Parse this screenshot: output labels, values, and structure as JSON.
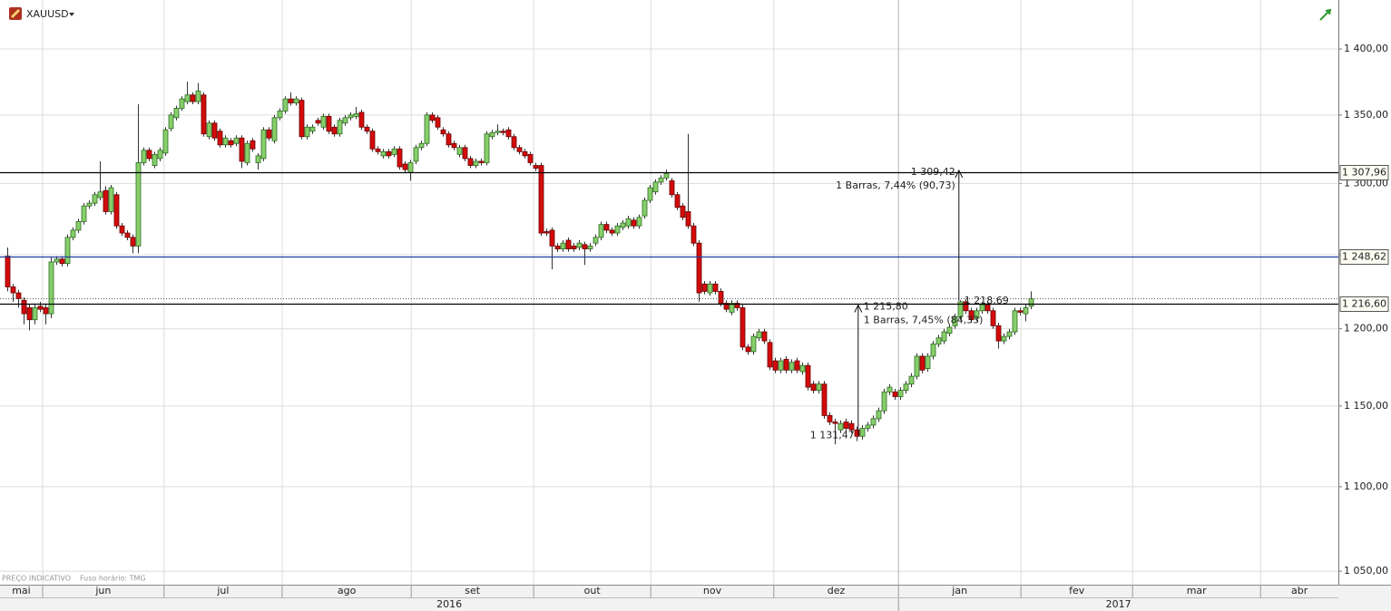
{
  "chart_data": {
    "type": "candlestick",
    "symbol": "XAUUSD",
    "footer": [
      "PREÇO INDICATIVO",
      "Fuso horário: TMG"
    ],
    "log_scale": true,
    "grid": true,
    "up_color": "#86cf6a",
    "down_color": "#d40b0b",
    "ylim": [
      1042.2,
      1438.3
    ],
    "yticks": [
      {
        "value": 1050,
        "label": "1 050,00"
      },
      {
        "value": 1100,
        "label": "1 100,00"
      },
      {
        "value": 1150,
        "label": "1 150,00"
      },
      {
        "value": 1200,
        "label": "1 200,00"
      },
      {
        "value": 1250,
        "label": "1 250,00"
      },
      {
        "value": 1300,
        "label": "1 300,00"
      },
      {
        "value": 1350,
        "label": "1 350,00"
      },
      {
        "value": 1400,
        "label": "1 400,00"
      }
    ],
    "xlim": [
      -1.33,
      244.5
    ],
    "xticks": [
      {
        "value": -21.5,
        "label": "mai"
      },
      {
        "value": 6.5,
        "label": "jun"
      },
      {
        "value": 28.8,
        "label": "jul"
      },
      {
        "value": 50.5,
        "label": "ago"
      },
      {
        "value": 74.2,
        "label": "set"
      },
      {
        "value": 96.7,
        "label": "out"
      },
      {
        "value": 118.2,
        "label": "nov"
      },
      {
        "value": 140.8,
        "label": "dez"
      },
      {
        "value": 163.7,
        "label": "jan"
      },
      {
        "value": 186.2,
        "label": "fev"
      },
      {
        "value": 206.7,
        "label": "mar"
      },
      {
        "value": 230.2,
        "label": "abr"
      }
    ],
    "year_ticks": [
      {
        "value": -105,
        "label": "2016"
      },
      {
        "value": 163.7,
        "label": "2017"
      }
    ],
    "hlines": [
      {
        "value": 1307.96,
        "label": "1 307,96",
        "color": "#000000"
      },
      {
        "value": 1248.62,
        "label": "1 248,62",
        "color": "#1f3fa0"
      },
      {
        "value": 1216.6,
        "label": "1 216,60",
        "color": "#000000"
      },
      {
        "value": 1220.5,
        "color": "#555555",
        "dotted": true
      }
    ],
    "measures": [
      {
        "x": 156.3,
        "from": 1131.47,
        "to": 1215.8,
        "from_label": "1 131,47",
        "to_label": "1 215,80",
        "text": "1 Barras, 7,45% (84,33)"
      },
      {
        "x": 174.8,
        "from": 1218.69,
        "to": 1309.42,
        "from_label": "1 218,69",
        "to_label": "1 309,42",
        "text": "1 Barras, 7,44% (90,73)"
      }
    ],
    "ohlc": [
      [
        1249,
        1255,
        1225,
        1228
      ],
      [
        1228,
        1230,
        1218,
        1224
      ],
      [
        1224,
        1226,
        1214,
        1220
      ],
      [
        1219,
        1221,
        1203,
        1210
      ],
      [
        1214,
        1216,
        1199,
        1206
      ],
      [
        1206,
        1216,
        1203,
        1214
      ],
      [
        1215,
        1218,
        1211,
        1213
      ],
      [
        1214,
        1216,
        1203,
        1210
      ],
      [
        1210,
        1248,
        1207,
        1245
      ],
      [
        1245,
        1249,
        1243,
        1247
      ],
      [
        1247,
        1249,
        1242,
        1244
      ],
      [
        1244,
        1264,
        1242,
        1262
      ],
      [
        1262,
        1269,
        1260,
        1267
      ],
      [
        1267,
        1275,
        1265,
        1273
      ],
      [
        1273,
        1286,
        1271,
        1284
      ],
      [
        1284,
        1288,
        1282,
        1286
      ],
      [
        1286,
        1294,
        1284,
        1292
      ],
      [
        1290,
        1316,
        1288,
        1294
      ],
      [
        1295,
        1298,
        1278,
        1280
      ],
      [
        1280,
        1299,
        1278,
        1297
      ],
      [
        1292,
        1294,
        1268,
        1270
      ],
      [
        1270,
        1272,
        1263,
        1265
      ],
      [
        1265,
        1267,
        1260,
        1262
      ],
      [
        1262,
        1264,
        1251,
        1256
      ],
      [
        1256,
        1358,
        1251,
        1315
      ],
      [
        1315,
        1326,
        1313,
        1324
      ],
      [
        1324,
        1326,
        1316,
        1318
      ],
      [
        1313,
        1323,
        1311,
        1321
      ],
      [
        1318,
        1326,
        1316,
        1324
      ],
      [
        1322,
        1341,
        1320,
        1339
      ],
      [
        1340,
        1352,
        1338,
        1350
      ],
      [
        1348,
        1357,
        1346,
        1355
      ],
      [
        1355,
        1364,
        1353,
        1362
      ],
      [
        1360,
        1375,
        1358,
        1365
      ],
      [
        1365,
        1367,
        1358,
        1360
      ],
      [
        1360,
        1374,
        1358,
        1368
      ],
      [
        1365,
        1367,
        1334,
        1336
      ],
      [
        1334,
        1346,
        1332,
        1344
      ],
      [
        1344,
        1346,
        1331,
        1333
      ],
      [
        1338,
        1340,
        1326,
        1328
      ],
      [
        1328,
        1335,
        1326,
        1333
      ],
      [
        1331,
        1333,
        1326,
        1328
      ],
      [
        1329,
        1335,
        1327,
        1333
      ],
      [
        1333,
        1335,
        1311,
        1316
      ],
      [
        1315,
        1331,
        1313,
        1329
      ],
      [
        1331,
        1333,
        1323,
        1325
      ],
      [
        1315,
        1322,
        1310,
        1320
      ],
      [
        1318,
        1341,
        1316,
        1339
      ],
      [
        1339,
        1341,
        1331,
        1333
      ],
      [
        1331,
        1350,
        1329,
        1348
      ],
      [
        1348,
        1355,
        1346,
        1353
      ],
      [
        1353,
        1364,
        1351,
        1362
      ],
      [
        1362,
        1367,
        1357,
        1359
      ],
      [
        1359,
        1364,
        1357,
        1362
      ],
      [
        1361,
        1363,
        1332,
        1334
      ],
      [
        1334,
        1343,
        1332,
        1341
      ],
      [
        1338,
        1343,
        1336,
        1341
      ],
      [
        1346,
        1348,
        1342,
        1344
      ],
      [
        1341,
        1351,
        1339,
        1349
      ],
      [
        1349,
        1351,
        1336,
        1338
      ],
      [
        1341,
        1343,
        1334,
        1336
      ],
      [
        1336,
        1348,
        1334,
        1346
      ],
      [
        1344,
        1350,
        1342,
        1348
      ],
      [
        1348,
        1352,
        1346,
        1350
      ],
      [
        1349,
        1356,
        1347,
        1351
      ],
      [
        1352,
        1354,
        1339,
        1341
      ],
      [
        1341,
        1343,
        1336,
        1338
      ],
      [
        1338,
        1340,
        1323,
        1325
      ],
      [
        1325,
        1327,
        1321,
        1323
      ],
      [
        1320,
        1325,
        1318,
        1323
      ],
      [
        1323,
        1325,
        1318,
        1320
      ],
      [
        1321,
        1327,
        1319,
        1325
      ],
      [
        1325,
        1327,
        1310,
        1312
      ],
      [
        1314,
        1316,
        1308,
        1310
      ],
      [
        1308,
        1317,
        1302,
        1315
      ],
      [
        1316,
        1328,
        1314,
        1326
      ],
      [
        1326,
        1331,
        1324,
        1329
      ],
      [
        1329,
        1352,
        1327,
        1350
      ],
      [
        1350,
        1352,
        1344,
        1346
      ],
      [
        1348,
        1350,
        1339,
        1341
      ],
      [
        1339,
        1341,
        1334,
        1336
      ],
      [
        1336,
        1338,
        1326,
        1328
      ],
      [
        1329,
        1331,
        1324,
        1326
      ],
      [
        1321,
        1328,
        1319,
        1326
      ],
      [
        1326,
        1328,
        1316,
        1318
      ],
      [
        1318,
        1320,
        1311,
        1313
      ],
      [
        1313,
        1318,
        1311,
        1316
      ],
      [
        1316,
        1318,
        1313,
        1315
      ],
      [
        1315,
        1338,
        1313,
        1336
      ],
      [
        1334,
        1339,
        1332,
        1337
      ],
      [
        1337,
        1343,
        1335,
        1338
      ],
      [
        1338,
        1340,
        1335,
        1337
      ],
      [
        1339,
        1341,
        1332,
        1334
      ],
      [
        1334,
        1336,
        1324,
        1326
      ],
      [
        1326,
        1328,
        1321,
        1323
      ],
      [
        1323,
        1325,
        1318,
        1320
      ],
      [
        1321,
        1323,
        1313,
        1315
      ],
      [
        1313,
        1315,
        1309,
        1311
      ],
      [
        1313,
        1315,
        1263,
        1265
      ],
      [
        1266,
        1268,
        1263,
        1265
      ],
      [
        1267,
        1269,
        1240,
        1256
      ],
      [
        1256,
        1258,
        1252,
        1254
      ],
      [
        1254,
        1260,
        1252,
        1258
      ],
      [
        1260,
        1262,
        1252,
        1254
      ],
      [
        1256,
        1258,
        1252,
        1254
      ],
      [
        1255,
        1260,
        1253,
        1258
      ],
      [
        1257,
        1259,
        1243,
        1254
      ],
      [
        1254,
        1258,
        1252,
        1256
      ],
      [
        1258,
        1264,
        1256,
        1262
      ],
      [
        1262,
        1273,
        1260,
        1271
      ],
      [
        1271,
        1273,
        1265,
        1267
      ],
      [
        1267,
        1269,
        1263,
        1265
      ],
      [
        1265,
        1272,
        1263,
        1270
      ],
      [
        1269,
        1274,
        1267,
        1272
      ],
      [
        1270,
        1277,
        1268,
        1275
      ],
      [
        1274,
        1276,
        1268,
        1270
      ],
      [
        1270,
        1278,
        1268,
        1276
      ],
      [
        1277,
        1290,
        1275,
        1288
      ],
      [
        1288,
        1299,
        1286,
        1297
      ],
      [
        1294,
        1303,
        1292,
        1301
      ],
      [
        1301,
        1306,
        1299,
        1304
      ],
      [
        1304,
        1310,
        1302,
        1307
      ],
      [
        1302,
        1304,
        1290,
        1292
      ],
      [
        1292,
        1294,
        1281,
        1283
      ],
      [
        1284,
        1286,
        1274,
        1276
      ],
      [
        1280,
        1336,
        1268,
        1270
      ],
      [
        1270,
        1272,
        1256,
        1258
      ],
      [
        1258,
        1260,
        1218,
        1224
      ],
      [
        1230,
        1232,
        1223,
        1225
      ],
      [
        1224,
        1232,
        1222,
        1230
      ],
      [
        1230,
        1232,
        1223,
        1225
      ],
      [
        1225,
        1227,
        1215,
        1217
      ],
      [
        1217,
        1219,
        1211,
        1213
      ],
      [
        1211,
        1219,
        1209,
        1217
      ],
      [
        1217,
        1219,
        1212,
        1214
      ],
      [
        1214,
        1216,
        1186,
        1188
      ],
      [
        1188,
        1190,
        1183,
        1185
      ],
      [
        1185,
        1197,
        1183,
        1195
      ],
      [
        1194,
        1200,
        1192,
        1198
      ],
      [
        1198,
        1200,
        1190,
        1192
      ],
      [
        1191,
        1193,
        1173,
        1175
      ],
      [
        1179,
        1181,
        1171,
        1173
      ],
      [
        1173,
        1181,
        1171,
        1179
      ],
      [
        1180,
        1182,
        1171,
        1173
      ],
      [
        1173,
        1180,
        1171,
        1178
      ],
      [
        1179,
        1181,
        1171,
        1173
      ],
      [
        1172,
        1178,
        1170,
        1176
      ],
      [
        1176,
        1178,
        1160,
        1162
      ],
      [
        1164,
        1166,
        1158,
        1160
      ],
      [
        1160,
        1166,
        1158,
        1164
      ],
      [
        1164,
        1166,
        1142,
        1144
      ],
      [
        1144,
        1146,
        1138,
        1140
      ],
      [
        1140,
        1142,
        1126,
        1139
      ],
      [
        1135,
        1141,
        1133,
        1139
      ],
      [
        1140,
        1142,
        1134,
        1136
      ],
      [
        1139,
        1141,
        1133,
        1135
      ],
      [
        1135,
        1137,
        1128,
        1131
      ],
      [
        1131,
        1138,
        1129,
        1136
      ],
      [
        1136,
        1140,
        1134,
        1138
      ],
      [
        1138,
        1144,
        1136,
        1142
      ],
      [
        1142,
        1149,
        1140,
        1147
      ],
      [
        1147,
        1161,
        1145,
        1159
      ],
      [
        1159,
        1164,
        1157,
        1162
      ],
      [
        1159,
        1161,
        1154,
        1156
      ],
      [
        1156,
        1162,
        1154,
        1160
      ],
      [
        1160,
        1166,
        1158,
        1164
      ],
      [
        1164,
        1171,
        1162,
        1169
      ],
      [
        1169,
        1184,
        1167,
        1182
      ],
      [
        1182,
        1184,
        1171,
        1173
      ],
      [
        1174,
        1184,
        1172,
        1182
      ],
      [
        1182,
        1192,
        1180,
        1190
      ],
      [
        1190,
        1196,
        1188,
        1194
      ],
      [
        1192,
        1200,
        1190,
        1198
      ],
      [
        1197,
        1203,
        1195,
        1201
      ],
      [
        1202,
        1210,
        1200,
        1208
      ],
      [
        1208,
        1219,
        1206,
        1218
      ],
      [
        1218,
        1220,
        1210,
        1212
      ],
      [
        1212,
        1214,
        1204,
        1206
      ],
      [
        1207,
        1214,
        1205,
        1212
      ],
      [
        1212,
        1218,
        1210,
        1216
      ],
      [
        1216,
        1218,
        1210,
        1212
      ],
      [
        1212,
        1214,
        1200,
        1202
      ],
      [
        1202,
        1204,
        1187,
        1192
      ],
      [
        1192,
        1197,
        1190,
        1195
      ],
      [
        1195,
        1200,
        1193,
        1198
      ],
      [
        1198,
        1214,
        1196,
        1212
      ],
      [
        1212,
        1214,
        1209,
        1211
      ],
      [
        1210,
        1216,
        1205,
        1214
      ],
      [
        1215,
        1225,
        1213,
        1220
      ]
    ]
  }
}
